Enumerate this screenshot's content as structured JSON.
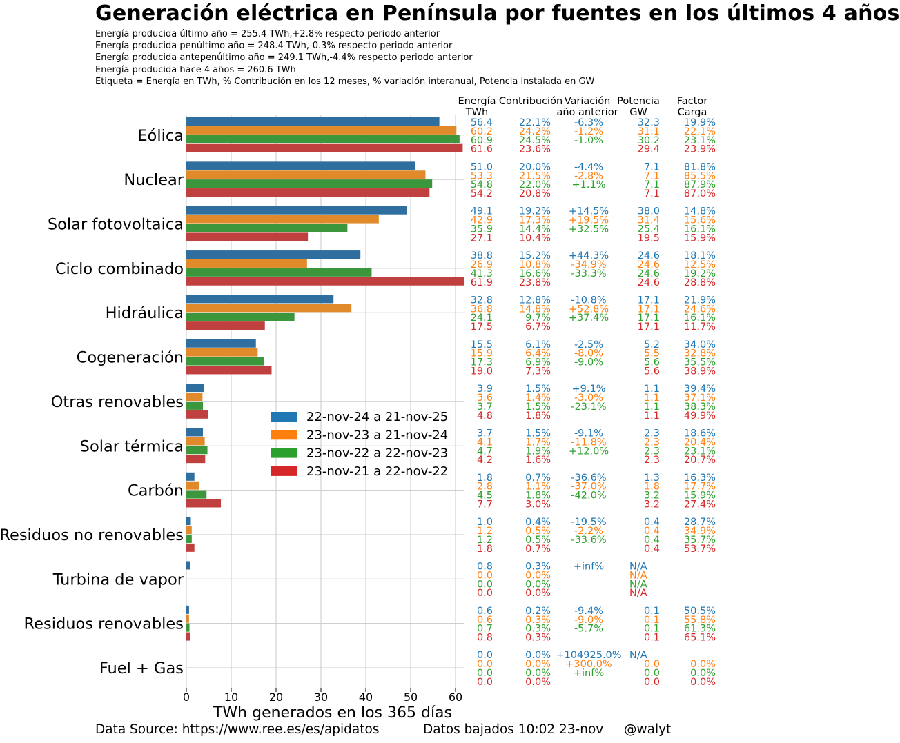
{
  "title": "Generación eléctrica en Península por fuentes en los últimos 4 años",
  "subtitle_lines": [
    "Energía producida último año  = 255.4 TWh,+2.8% respecto periodo anterior",
    "Energía producida penúltimo año  = 248.4 TWh,-0.3% respecto periodo anterior",
    "Energía producida antepenúltimo año  = 249.1 TWh,-4.4% respecto periodo anterior",
    "Energía producida hace 4 años  = 260.6 TWh",
    "Etiqueta =  Energía en TWh, % Contribución en los 12 meses, % variación interanual, Potencia instalada en GW"
  ],
  "footer": {
    "source": "Data Source: https://www.ree.es/es/apidatos",
    "downloaded": "Datos bajados 10:02 23-nov",
    "author": "@walyt"
  },
  "colors": {
    "series": [
      "#1f77b4",
      "#ff7f0e",
      "#2ca02c",
      "#d62728"
    ],
    "bars": [
      "#2f6f9f",
      "#e08a2c",
      "#3c963c",
      "#c04040"
    ],
    "grid": "#c8c8c8"
  },
  "column_headers": [
    [
      "Energía",
      "TWh"
    ],
    [
      "Contribución",
      ""
    ],
    [
      "Variación",
      "año anterior"
    ],
    [
      "Potencia",
      "GW"
    ],
    [
      "Factor",
      "Carga"
    ]
  ],
  "chart_data": {
    "type": "bar",
    "orientation": "horizontal",
    "xlabel": "TWh generados en los 365 días",
    "xlim": [
      0,
      62
    ],
    "xticks": [
      0,
      10,
      20,
      30,
      40,
      50,
      60
    ],
    "grid": true,
    "legend_placement": "center",
    "series": [
      {
        "name": "22-nov-24 a 21-nov-25"
      },
      {
        "name": "23-nov-23 a 21-nov-24"
      },
      {
        "name": "23-nov-22 a 22-nov-23"
      },
      {
        "name": "23-nov-21 a 22-nov-22"
      }
    ],
    "categories": [
      {
        "name": "Eólica",
        "values": [
          56.4,
          60.2,
          60.9,
          61.6
        ],
        "labels": [
          [
            "56.4",
            "22.1%",
            "-6.3%",
            "32.3",
            "19.9%"
          ],
          [
            "60.2",
            "24.2%",
            "-1.2%",
            "31.1",
            "22.1%"
          ],
          [
            "60.9",
            "24.5%",
            "-1.0%",
            "30.2",
            "23.1%"
          ],
          [
            "61.6",
            "23.6%",
            "",
            "29.4",
            "23.9%"
          ]
        ]
      },
      {
        "name": "Nuclear",
        "values": [
          51.0,
          53.3,
          54.8,
          54.2
        ],
        "labels": [
          [
            "51.0",
            "20.0%",
            "-4.4%",
            "7.1",
            "81.8%"
          ],
          [
            "53.3",
            "21.5%",
            "-2.8%",
            "7.1",
            "85.5%"
          ],
          [
            "54.8",
            "22.0%",
            "+1.1%",
            "7.1",
            "87.9%"
          ],
          [
            "54.2",
            "20.8%",
            "",
            "7.1",
            "87.0%"
          ]
        ]
      },
      {
        "name": "Solar fotovoltaica",
        "values": [
          49.1,
          42.9,
          35.9,
          27.1
        ],
        "labels": [
          [
            "49.1",
            "19.2%",
            "+14.5%",
            "38.0",
            "14.8%"
          ],
          [
            "42.9",
            "17.3%",
            "+19.5%",
            "31.4",
            "15.6%"
          ],
          [
            "35.9",
            "14.4%",
            "+32.5%",
            "25.4",
            "16.1%"
          ],
          [
            "27.1",
            "10.4%",
            "",
            "19.5",
            "15.9%"
          ]
        ]
      },
      {
        "name": "Ciclo combinado",
        "values": [
          38.8,
          26.9,
          41.3,
          61.9
        ],
        "labels": [
          [
            "38.8",
            "15.2%",
            "+44.3%",
            "24.6",
            "18.1%"
          ],
          [
            "26.9",
            "10.8%",
            "-34.9%",
            "24.6",
            "12.5%"
          ],
          [
            "41.3",
            "16.6%",
            "-33.3%",
            "24.6",
            "19.2%"
          ],
          [
            "61.9",
            "23.8%",
            "",
            "24.6",
            "28.8%"
          ]
        ]
      },
      {
        "name": "Hidráulica",
        "values": [
          32.8,
          36.8,
          24.1,
          17.5
        ],
        "labels": [
          [
            "32.8",
            "12.8%",
            "-10.8%",
            "17.1",
            "21.9%"
          ],
          [
            "36.8",
            "14.8%",
            "+52.8%",
            "17.1",
            "24.6%"
          ],
          [
            "24.1",
            "9.7%",
            "+37.4%",
            "17.1",
            "16.1%"
          ],
          [
            "17.5",
            "6.7%",
            "",
            "17.1",
            "11.7%"
          ]
        ]
      },
      {
        "name": "Cogeneración",
        "values": [
          15.5,
          15.9,
          17.3,
          19.0
        ],
        "labels": [
          [
            "15.5",
            "6.1%",
            "-2.5%",
            "5.2",
            "34.0%"
          ],
          [
            "15.9",
            "6.4%",
            "-8.0%",
            "5.5",
            "32.8%"
          ],
          [
            "17.3",
            "6.9%",
            "-9.0%",
            "5.6",
            "35.5%"
          ],
          [
            "19.0",
            "7.3%",
            "",
            "5.6",
            "38.9%"
          ]
        ]
      },
      {
        "name": "Otras renovables",
        "values": [
          3.9,
          3.6,
          3.7,
          4.8
        ],
        "labels": [
          [
            "3.9",
            "1.5%",
            "+9.1%",
            "1.1",
            "39.4%"
          ],
          [
            "3.6",
            "1.4%",
            "-3.0%",
            "1.1",
            "37.1%"
          ],
          [
            "3.7",
            "1.5%",
            "-23.1%",
            "1.1",
            "38.3%"
          ],
          [
            "4.8",
            "1.8%",
            "",
            "1.1",
            "49.9%"
          ]
        ]
      },
      {
        "name": "Solar térmica",
        "values": [
          3.7,
          4.1,
          4.7,
          4.2
        ],
        "labels": [
          [
            "3.7",
            "1.5%",
            "-9.1%",
            "2.3",
            "18.6%"
          ],
          [
            "4.1",
            "1.7%",
            "-11.8%",
            "2.3",
            "20.4%"
          ],
          [
            "4.7",
            "1.9%",
            "+12.0%",
            "2.3",
            "23.1%"
          ],
          [
            "4.2",
            "1.6%",
            "",
            "2.3",
            "20.7%"
          ]
        ]
      },
      {
        "name": "Carbón",
        "values": [
          1.8,
          2.8,
          4.5,
          7.7
        ],
        "labels": [
          [
            "1.8",
            "0.7%",
            "-36.6%",
            "1.3",
            "16.3%"
          ],
          [
            "2.8",
            "1.1%",
            "-37.0%",
            "1.8",
            "17.7%"
          ],
          [
            "4.5",
            "1.8%",
            "-42.0%",
            "3.2",
            "15.9%"
          ],
          [
            "7.7",
            "3.0%",
            "",
            "3.2",
            "27.4%"
          ]
        ]
      },
      {
        "name": "Residuos no renovables",
        "values": [
          1.0,
          1.2,
          1.2,
          1.8
        ],
        "labels": [
          [
            "1.0",
            "0.4%",
            "-19.5%",
            "0.4",
            "28.7%"
          ],
          [
            "1.2",
            "0.5%",
            "-2.2%",
            "0.4",
            "34.9%"
          ],
          [
            "1.2",
            "0.5%",
            "-33.6%",
            "0.4",
            "35.7%"
          ],
          [
            "1.8",
            "0.7%",
            "",
            "0.4",
            "53.7%"
          ]
        ]
      },
      {
        "name": "Turbina de vapor",
        "values": [
          0.8,
          0.0,
          0.0,
          0.0
        ],
        "labels": [
          [
            "0.8",
            "0.3%",
            "+inf%",
            "N/A",
            ""
          ],
          [
            "0.0",
            "0.0%",
            "",
            "N/A",
            ""
          ],
          [
            "0.0",
            "0.0%",
            "",
            "N/A",
            ""
          ],
          [
            "0.0",
            "0.0%",
            "",
            "N/A",
            ""
          ]
        ]
      },
      {
        "name": "Residuos renovables",
        "values": [
          0.6,
          0.6,
          0.7,
          0.8
        ],
        "labels": [
          [
            "0.6",
            "0.2%",
            "-9.4%",
            "0.1",
            "50.5%"
          ],
          [
            "0.6",
            "0.3%",
            "-9.0%",
            "0.1",
            "55.8%"
          ],
          [
            "0.7",
            "0.3%",
            "-5.7%",
            "0.1",
            "61.3%"
          ],
          [
            "0.8",
            "0.3%",
            "",
            "0.1",
            "65.1%"
          ]
        ]
      },
      {
        "name": "Fuel + Gas",
        "values": [
          0.0,
          0.0,
          0.0,
          0.0
        ],
        "labels": [
          [
            "0.0",
            "0.0%",
            "+104925.0%",
            "N/A",
            ""
          ],
          [
            "0.0",
            "0.0%",
            "+300.0%",
            "0.0",
            "0.0%"
          ],
          [
            "0.0",
            "0.0%",
            "+inf%",
            "0.0",
            "0.0%"
          ],
          [
            "0.0",
            "0.0%",
            "",
            "0.0",
            "0.0%"
          ]
        ]
      }
    ]
  }
}
